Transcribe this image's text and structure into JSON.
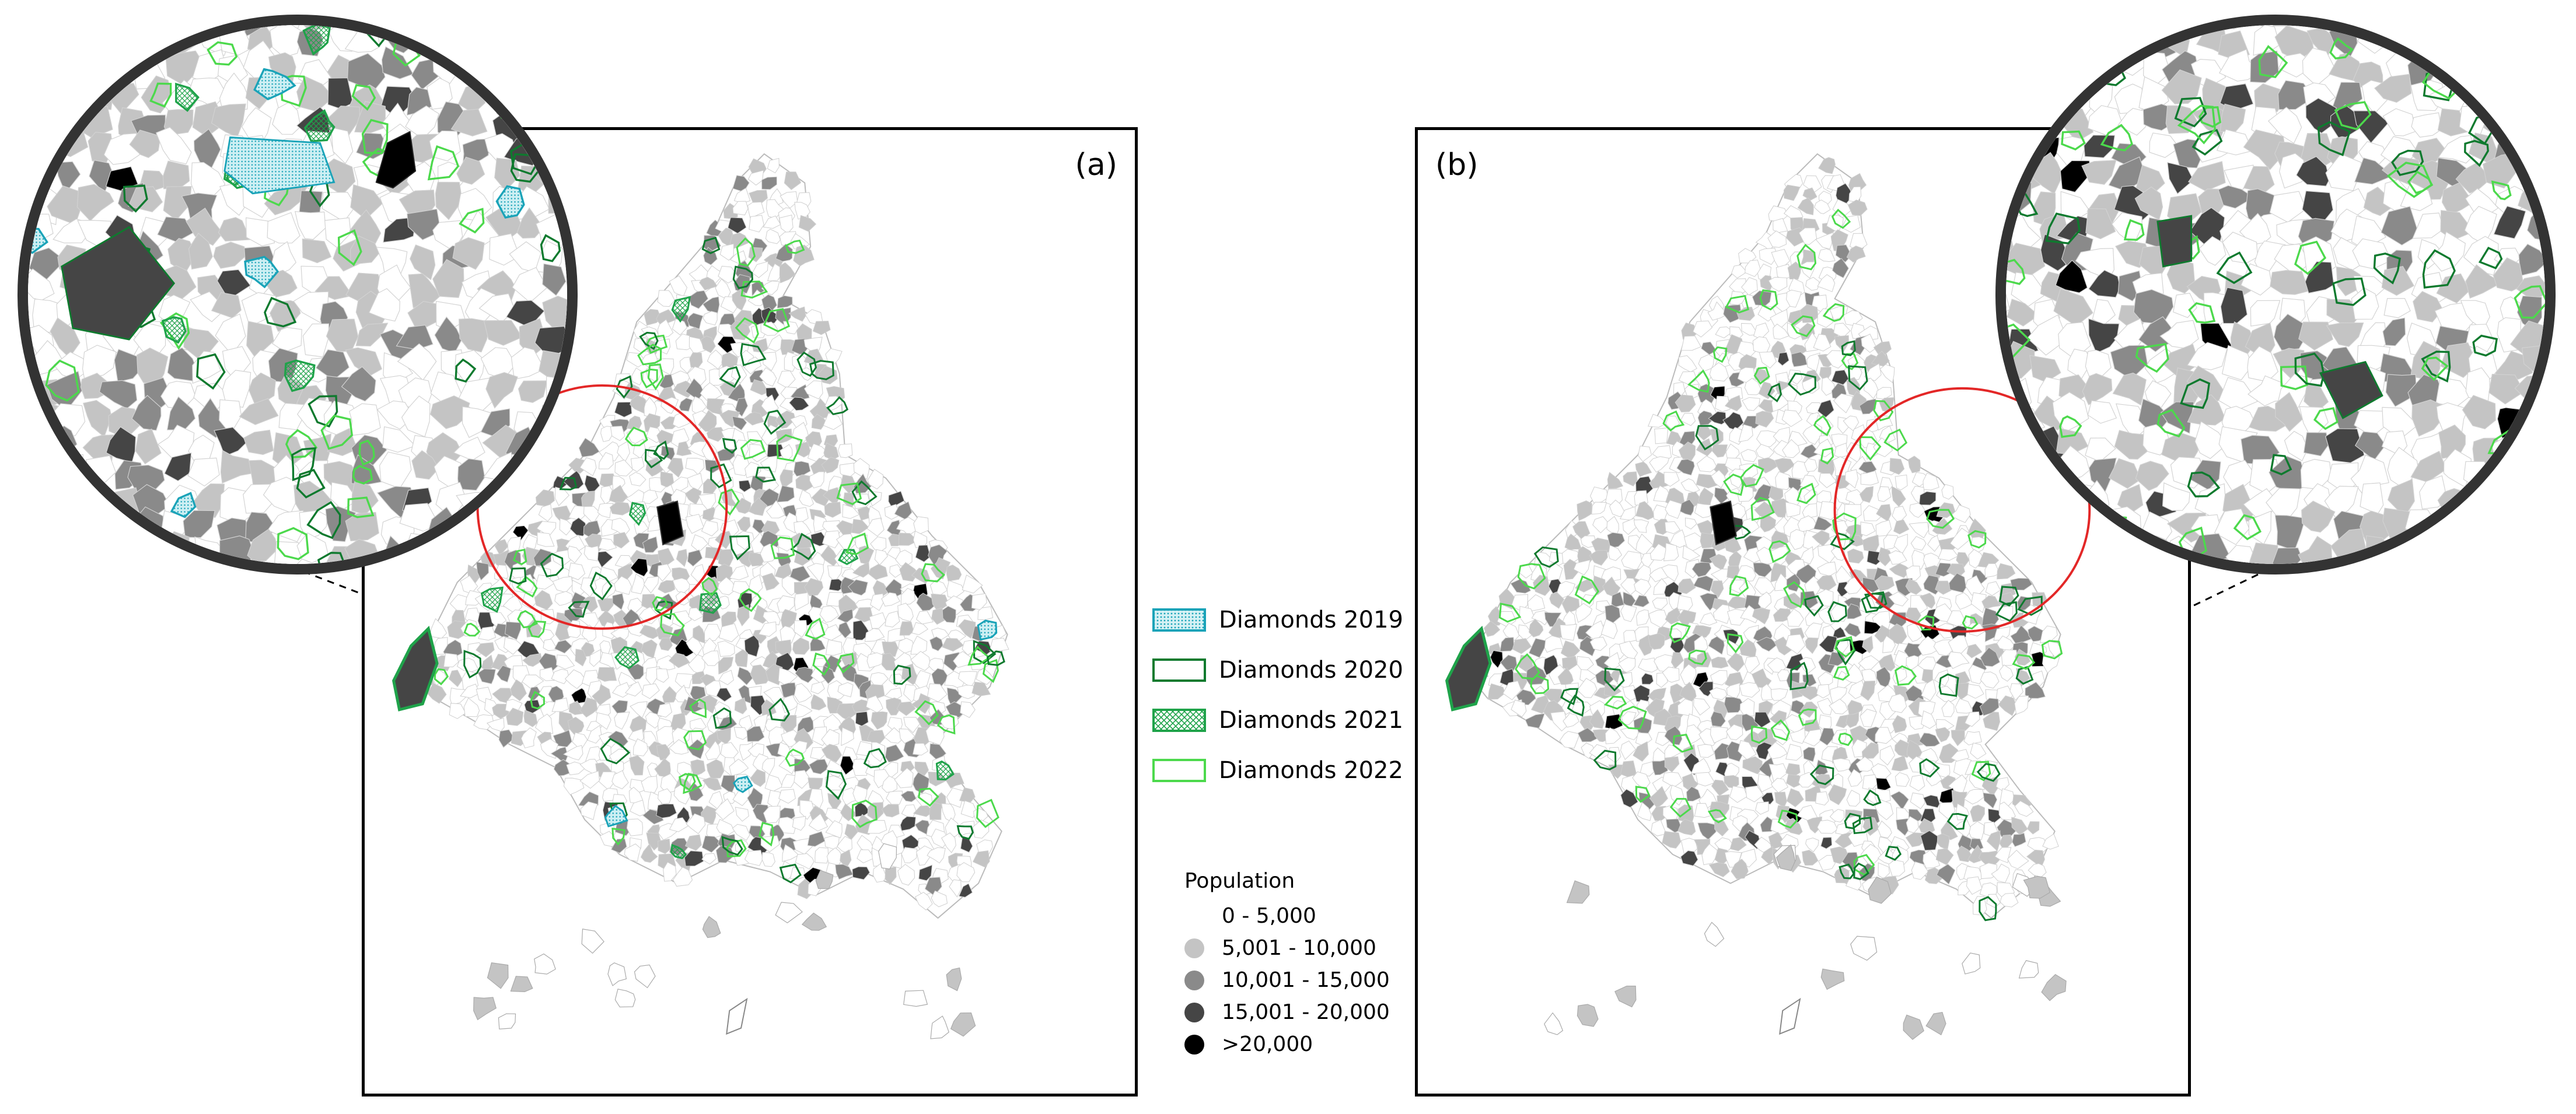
{
  "panels": [
    {
      "label": "(a)"
    },
    {
      "label": "(b)"
    }
  ],
  "legend": {
    "diamonds": [
      {
        "label": "Diamonds 2019",
        "color": "#1aa3b8",
        "style": "dotted-fill"
      },
      {
        "label": "Diamonds 2020",
        "color": "#0e7a2e",
        "style": "outline"
      },
      {
        "label": "Diamonds 2021",
        "color": "#1fa34a",
        "style": "crosshatch"
      },
      {
        "label": "Diamonds 2022",
        "color": "#4cd94c",
        "style": "outline"
      }
    ],
    "population": {
      "title": "Population",
      "classes": [
        {
          "label": "0 - 5,000",
          "color": "#ffffff"
        },
        {
          "label": "5,001 - 10,000",
          "color": "#c4c4c4"
        },
        {
          "label": "10,001 - 15,000",
          "color": "#8a8a8a"
        },
        {
          "label": "15,001 - 20,000",
          "color": "#454545"
        },
        {
          "label": ">20,000",
          "color": "#000000"
        }
      ]
    }
  },
  "highlight_color": "#e32727"
}
